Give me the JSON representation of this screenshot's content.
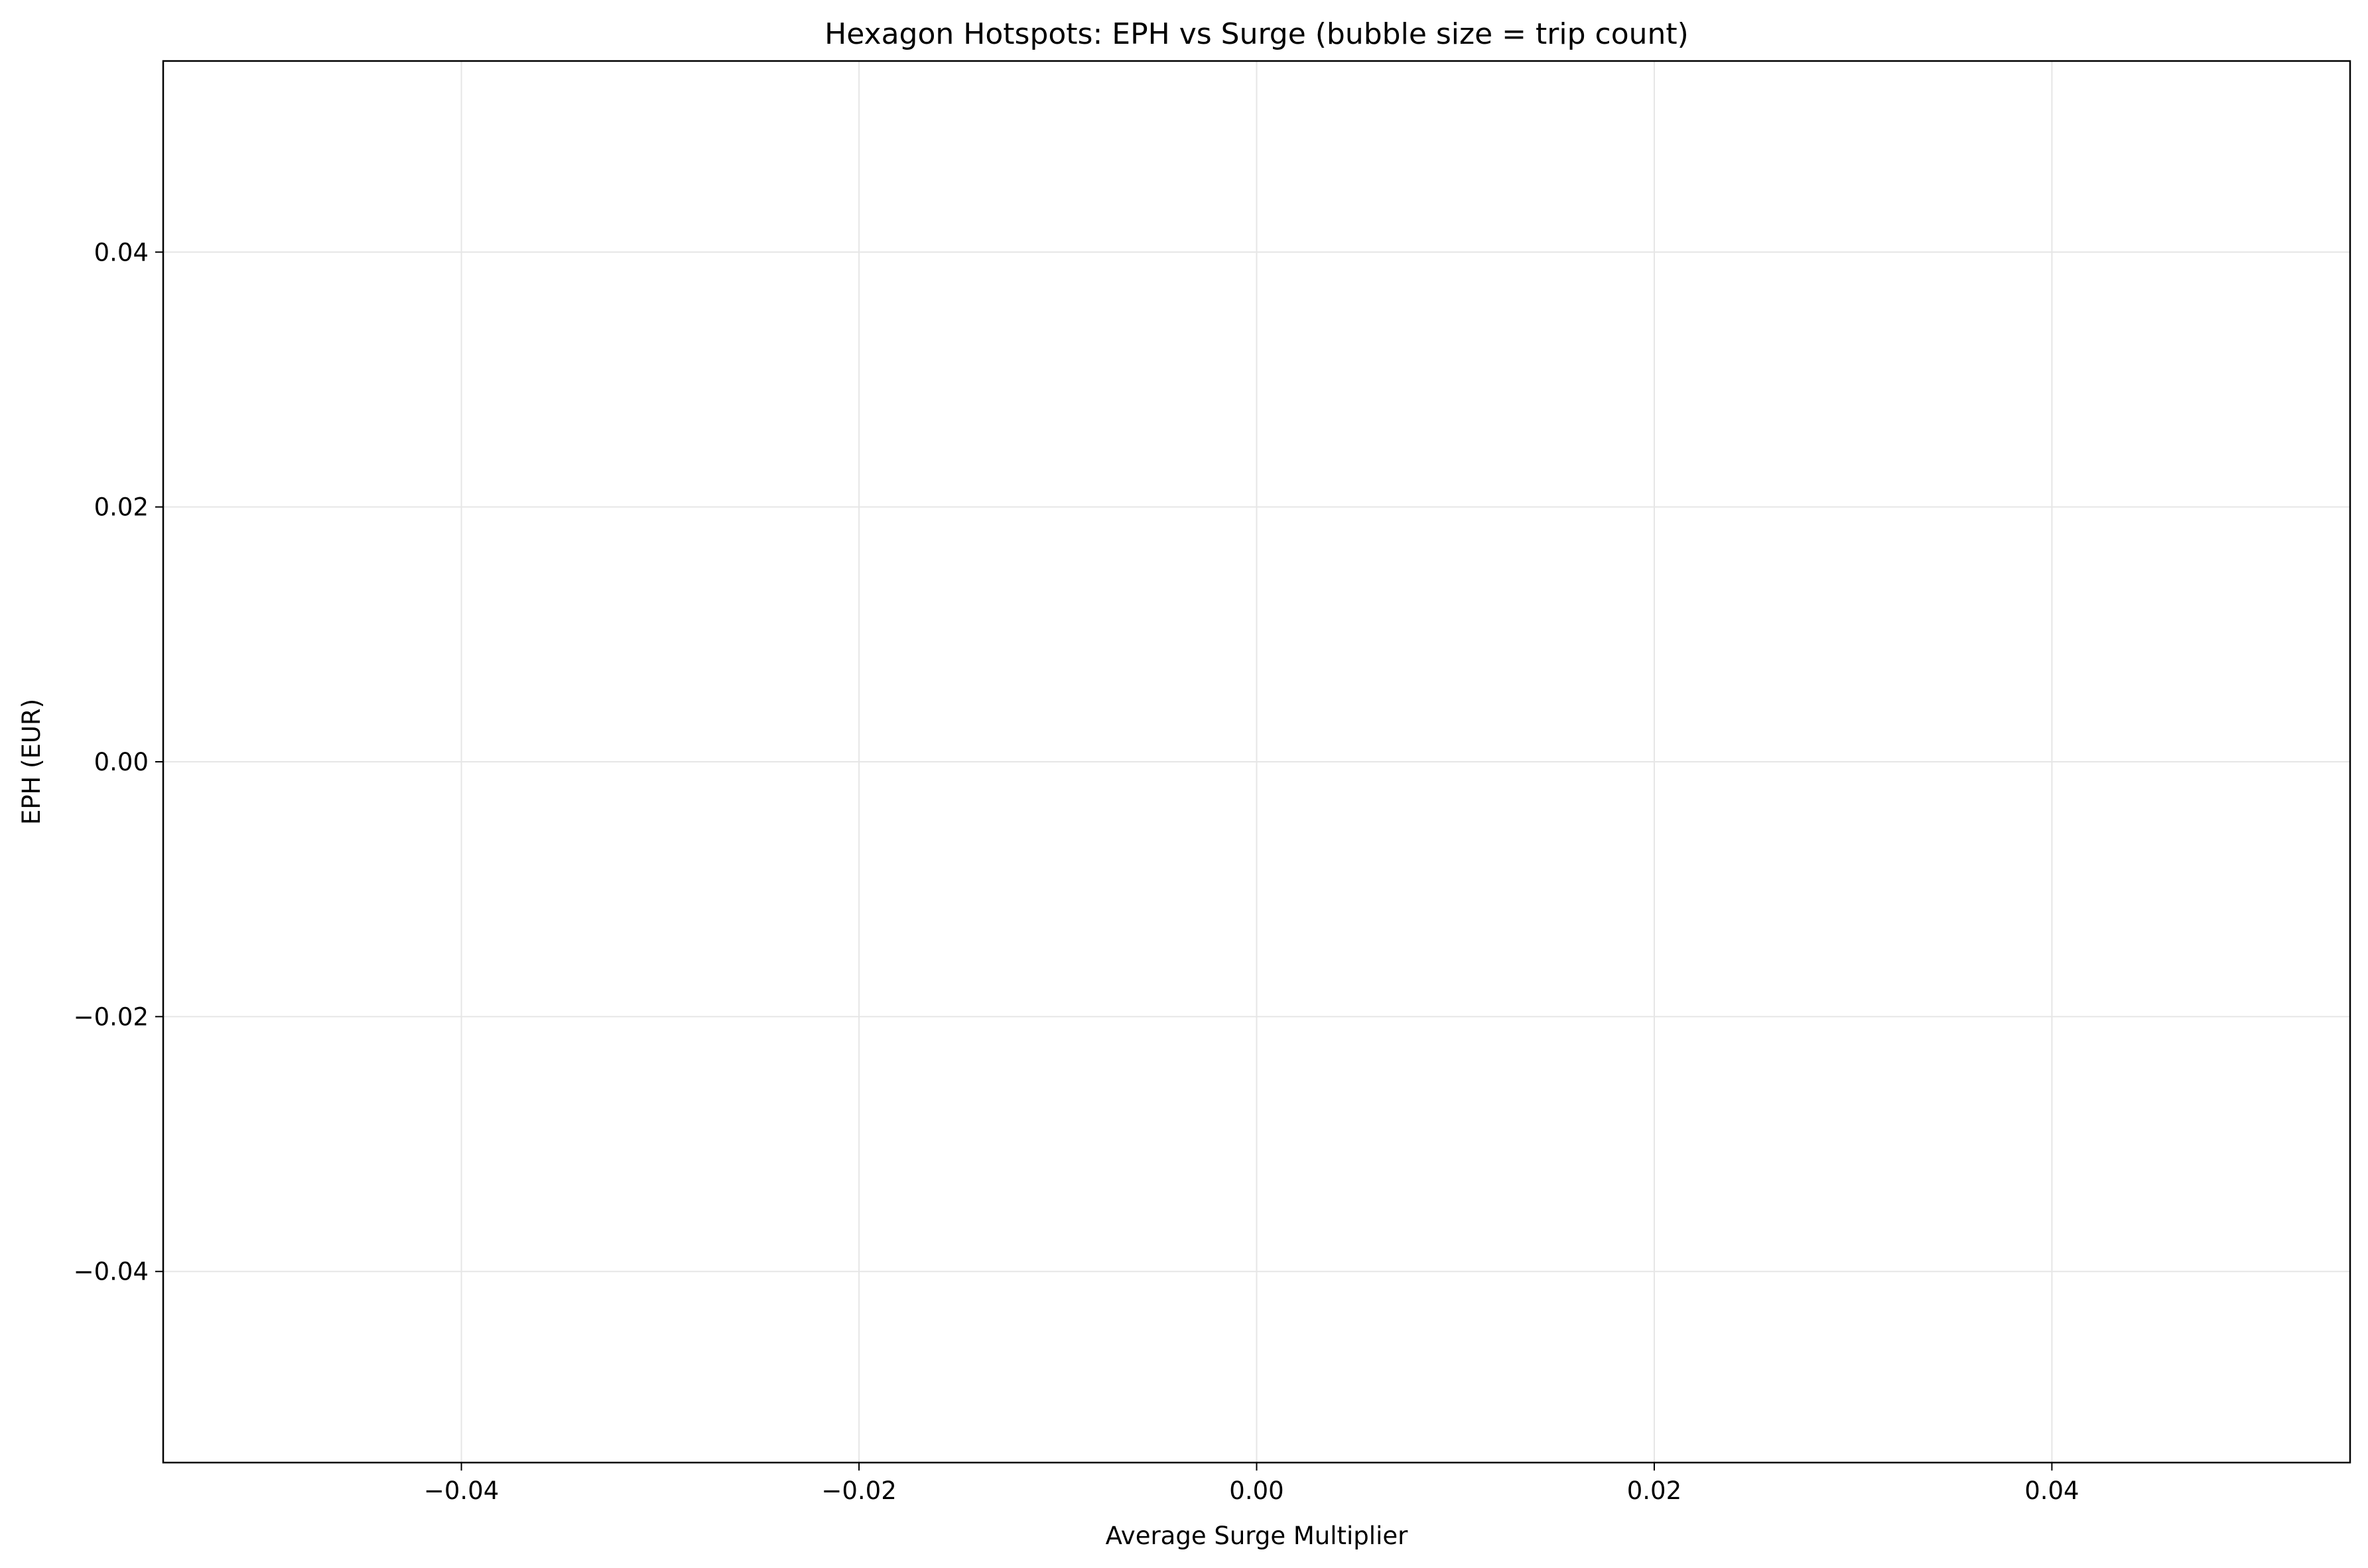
{
  "chart_data": {
    "type": "scatter",
    "title": "Hexagon Hotspots: EPH vs Surge (bubble size = trip count)",
    "xlabel": "Average Surge Multiplier",
    "ylabel": "EPH (EUR)",
    "xlim": [
      -0.055,
      0.055
    ],
    "ylim": [
      -0.055,
      0.055
    ],
    "x_ticks": [
      {
        "value": -0.04,
        "label": "−0.04"
      },
      {
        "value": -0.02,
        "label": "−0.02"
      },
      {
        "value": 0.0,
        "label": "0.00"
      },
      {
        "value": 0.02,
        "label": "0.02"
      },
      {
        "value": 0.04,
        "label": "0.04"
      }
    ],
    "y_ticks": [
      {
        "value": 0.04,
        "label": "0.04"
      },
      {
        "value": 0.02,
        "label": "0.02"
      },
      {
        "value": 0.0,
        "label": "0.00"
      },
      {
        "value": -0.02,
        "label": "−0.02"
      },
      {
        "value": -0.04,
        "label": "−0.04"
      }
    ],
    "grid": true,
    "legend": "none",
    "series": [
      {
        "x": [],
        "y": [],
        "sizes": []
      }
    ],
    "colors": {
      "grid": "#e6e6e6",
      "axes": "#000000",
      "background": "#ffffff"
    }
  }
}
